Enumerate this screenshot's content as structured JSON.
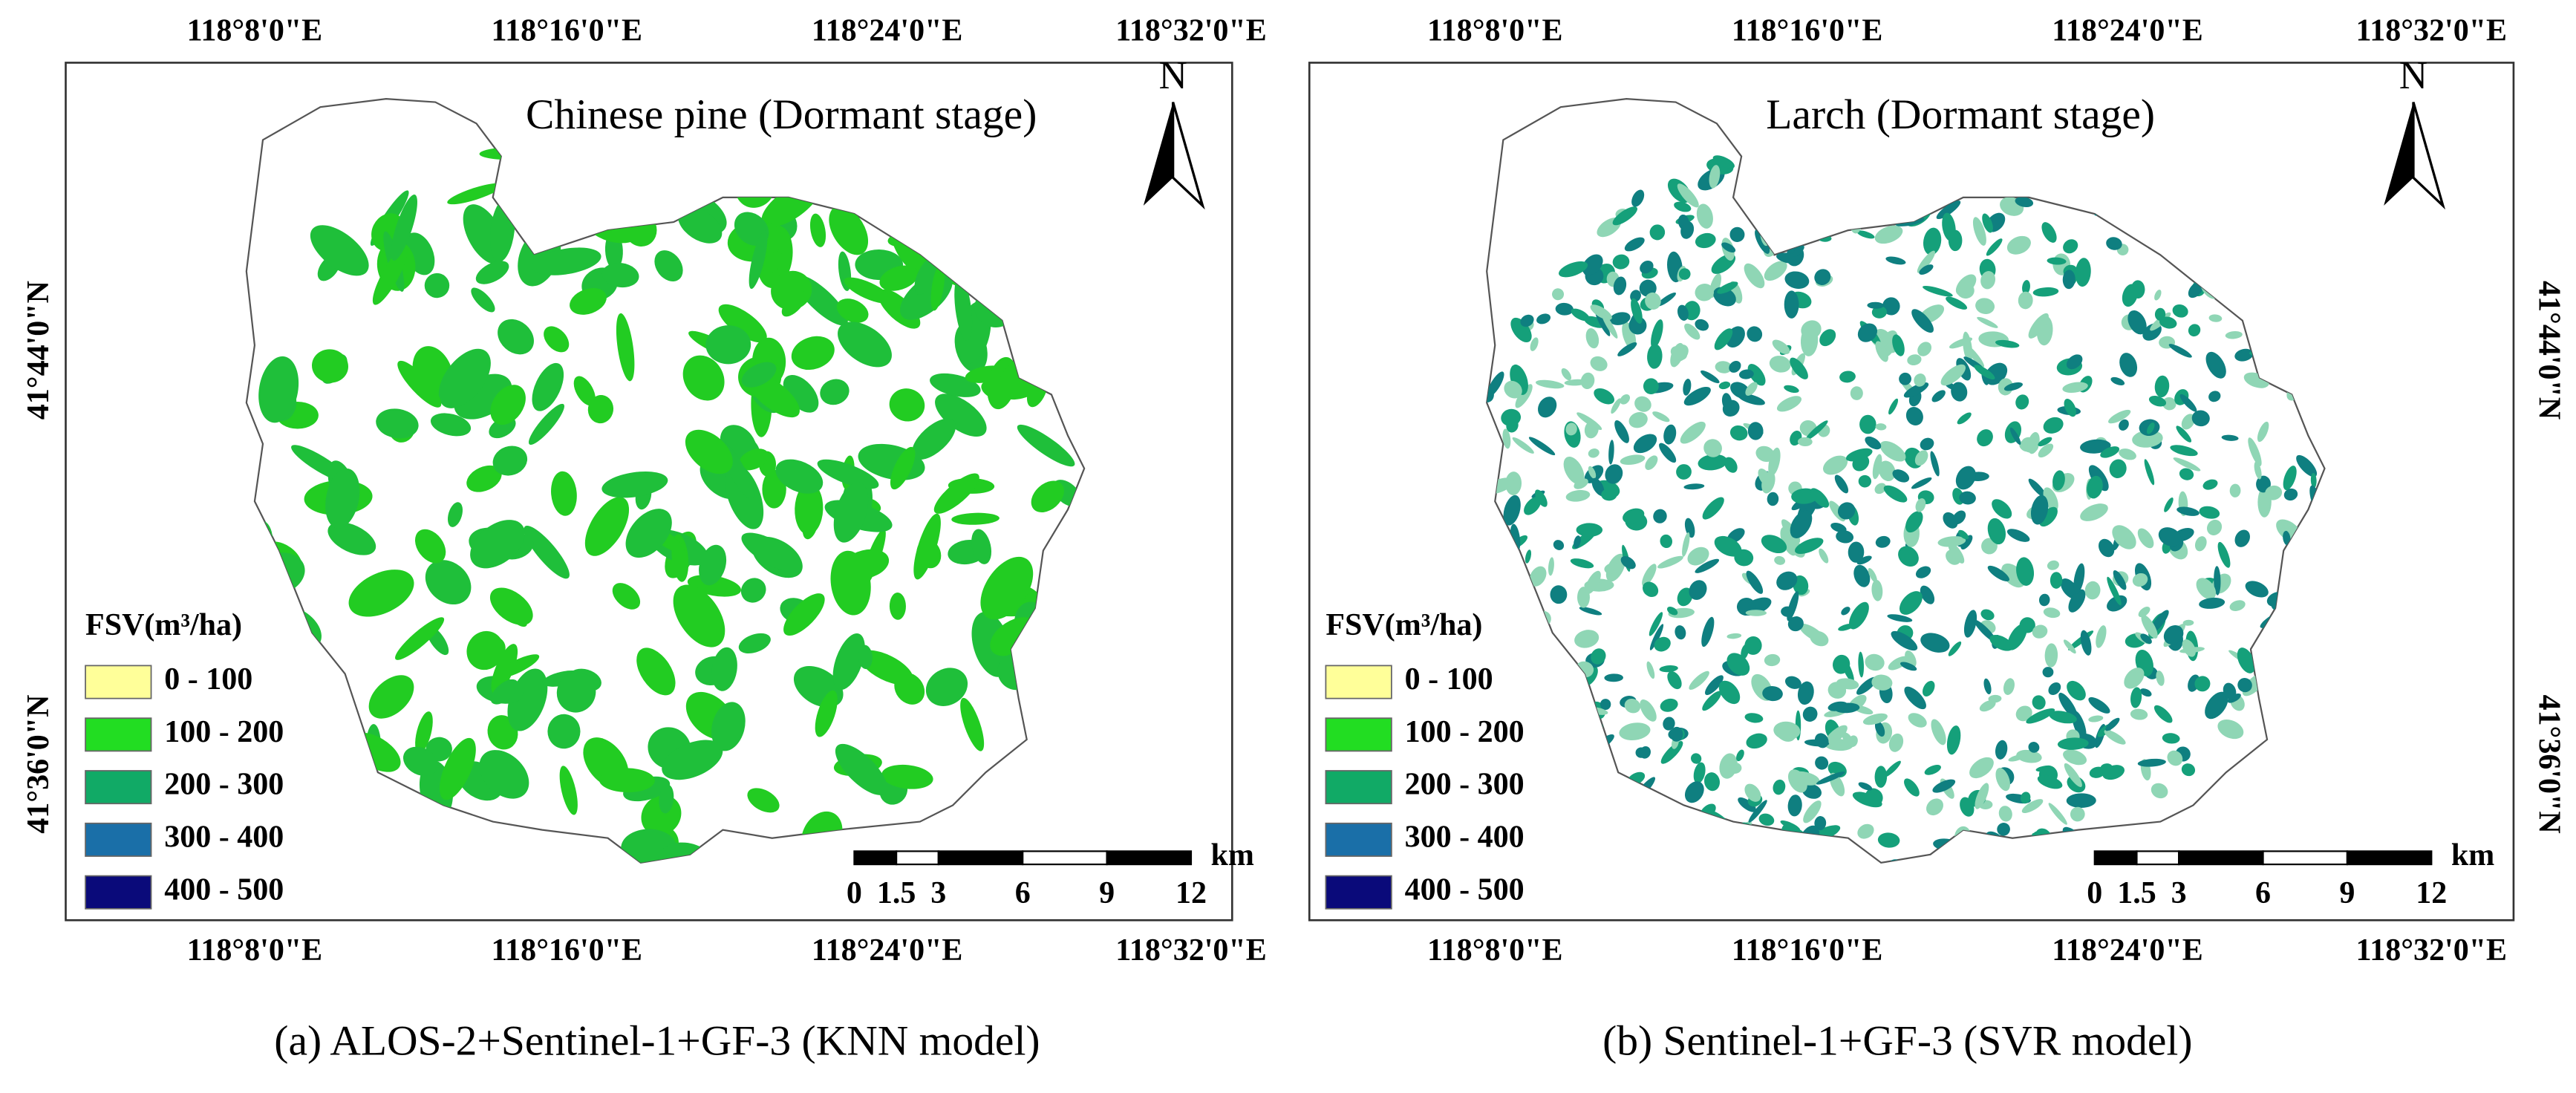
{
  "panels": [
    {
      "title": "Chinese pine (Dormant stage)",
      "caption": "(a) ALOS-2+Sentinel-1+GF-3 (KNN model)",
      "top_longitudes": [
        "118°8'0\"E",
        "118°16'0\"E",
        "118°24'0\"E",
        "118°32'0\"E"
      ],
      "bottom_longitudes": [
        "118°8'0\"E",
        "118°16'0\"E",
        "118°24'0\"E",
        "118°32'0\"E"
      ],
      "latitudes": [
        "41°44'0\"N",
        "41°36'0\"N"
      ],
      "north": "N",
      "legend": {
        "title": "FSV(m³/ha)",
        "items": [
          {
            "label": "0 - 100",
            "color": "#ffff99"
          },
          {
            "label": "100 - 200",
            "color": "#22dd22"
          },
          {
            "label": "200 - 300",
            "color": "#11aa66"
          },
          {
            "label": "300 - 400",
            "color": "#1a6fa8"
          },
          {
            "label": "400 - 500",
            "color": "#0a0a7a"
          }
        ]
      },
      "scale_bar": {
        "labels": [
          0,
          1.5,
          3,
          6,
          9,
          12
        ],
        "unit": "km"
      }
    },
    {
      "title": "Larch (Dormant stage)",
      "caption": "(b) Sentinel-1+GF-3 (SVR model)",
      "top_longitudes": [
        "118°8'0\"E",
        "118°16'0\"E",
        "118°24'0\"E",
        "118°32'0\"E"
      ],
      "bottom_longitudes": [
        "118°8'0\"E",
        "118°16'0\"E",
        "118°24'0\"E",
        "118°32'0\"E"
      ],
      "latitudes": [
        "41°44'0\"N",
        "41°36'0\"N"
      ],
      "north": "N",
      "legend": {
        "title": "FSV(m³/ha)",
        "items": [
          {
            "label": "0 - 100",
            "color": "#ffff99"
          },
          {
            "label": "100 - 200",
            "color": "#22dd22"
          },
          {
            "label": "200 - 300",
            "color": "#11aa66"
          },
          {
            "label": "300 - 400",
            "color": "#1a6fa8"
          },
          {
            "label": "400 - 500",
            "color": "#0a0a7a"
          }
        ]
      },
      "scale_bar": {
        "labels": [
          0,
          1.5,
          3,
          6,
          9,
          12
        ],
        "unit": "km"
      }
    }
  ]
}
